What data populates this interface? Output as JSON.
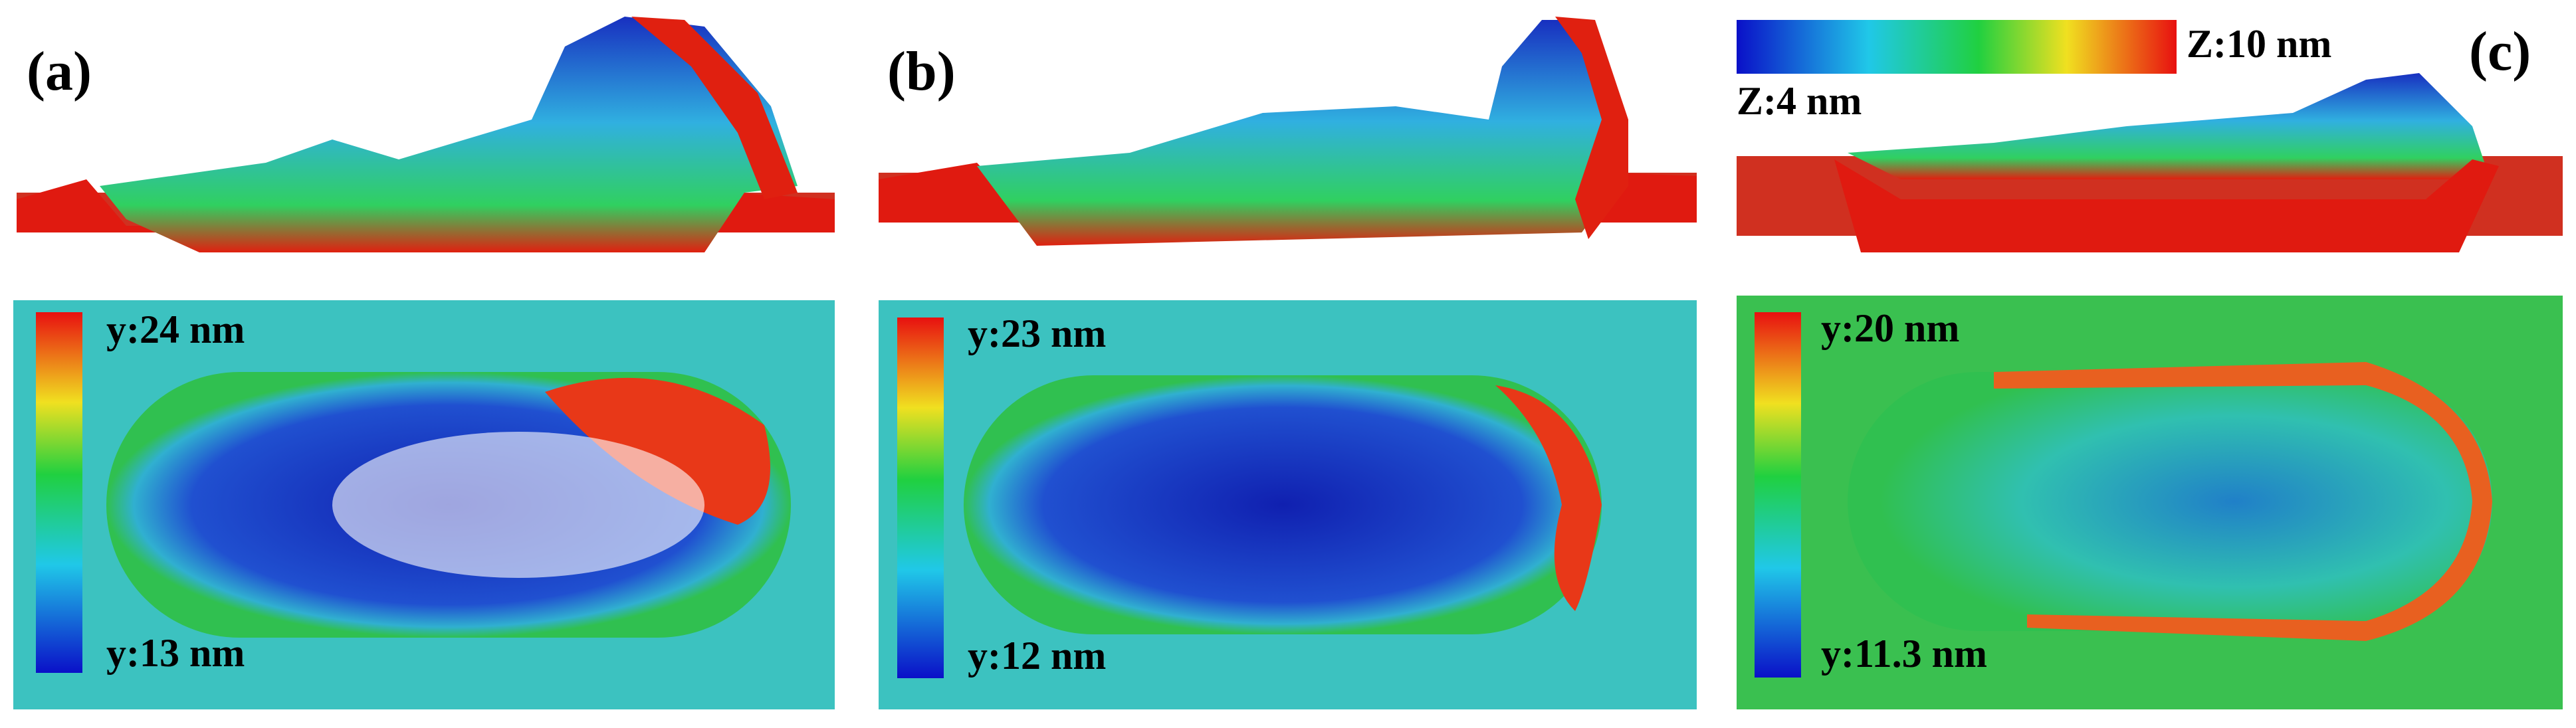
{
  "colorbar_z": {
    "max_label": "Z:10 nm",
    "min_label": "Z:4 nm"
  },
  "panels": [
    {
      "label": "(a)",
      "colorbar": {
        "max_label": "y:24 nm",
        "min_label": "y:13 nm"
      }
    },
    {
      "label": "(b)",
      "colorbar": {
        "max_label": "y:23 nm",
        "min_label": "y:12 nm"
      }
    },
    {
      "label": "(c)",
      "colorbar": {
        "max_label": "y:20 nm",
        "min_label": "y:11.3 nm"
      }
    }
  ]
}
